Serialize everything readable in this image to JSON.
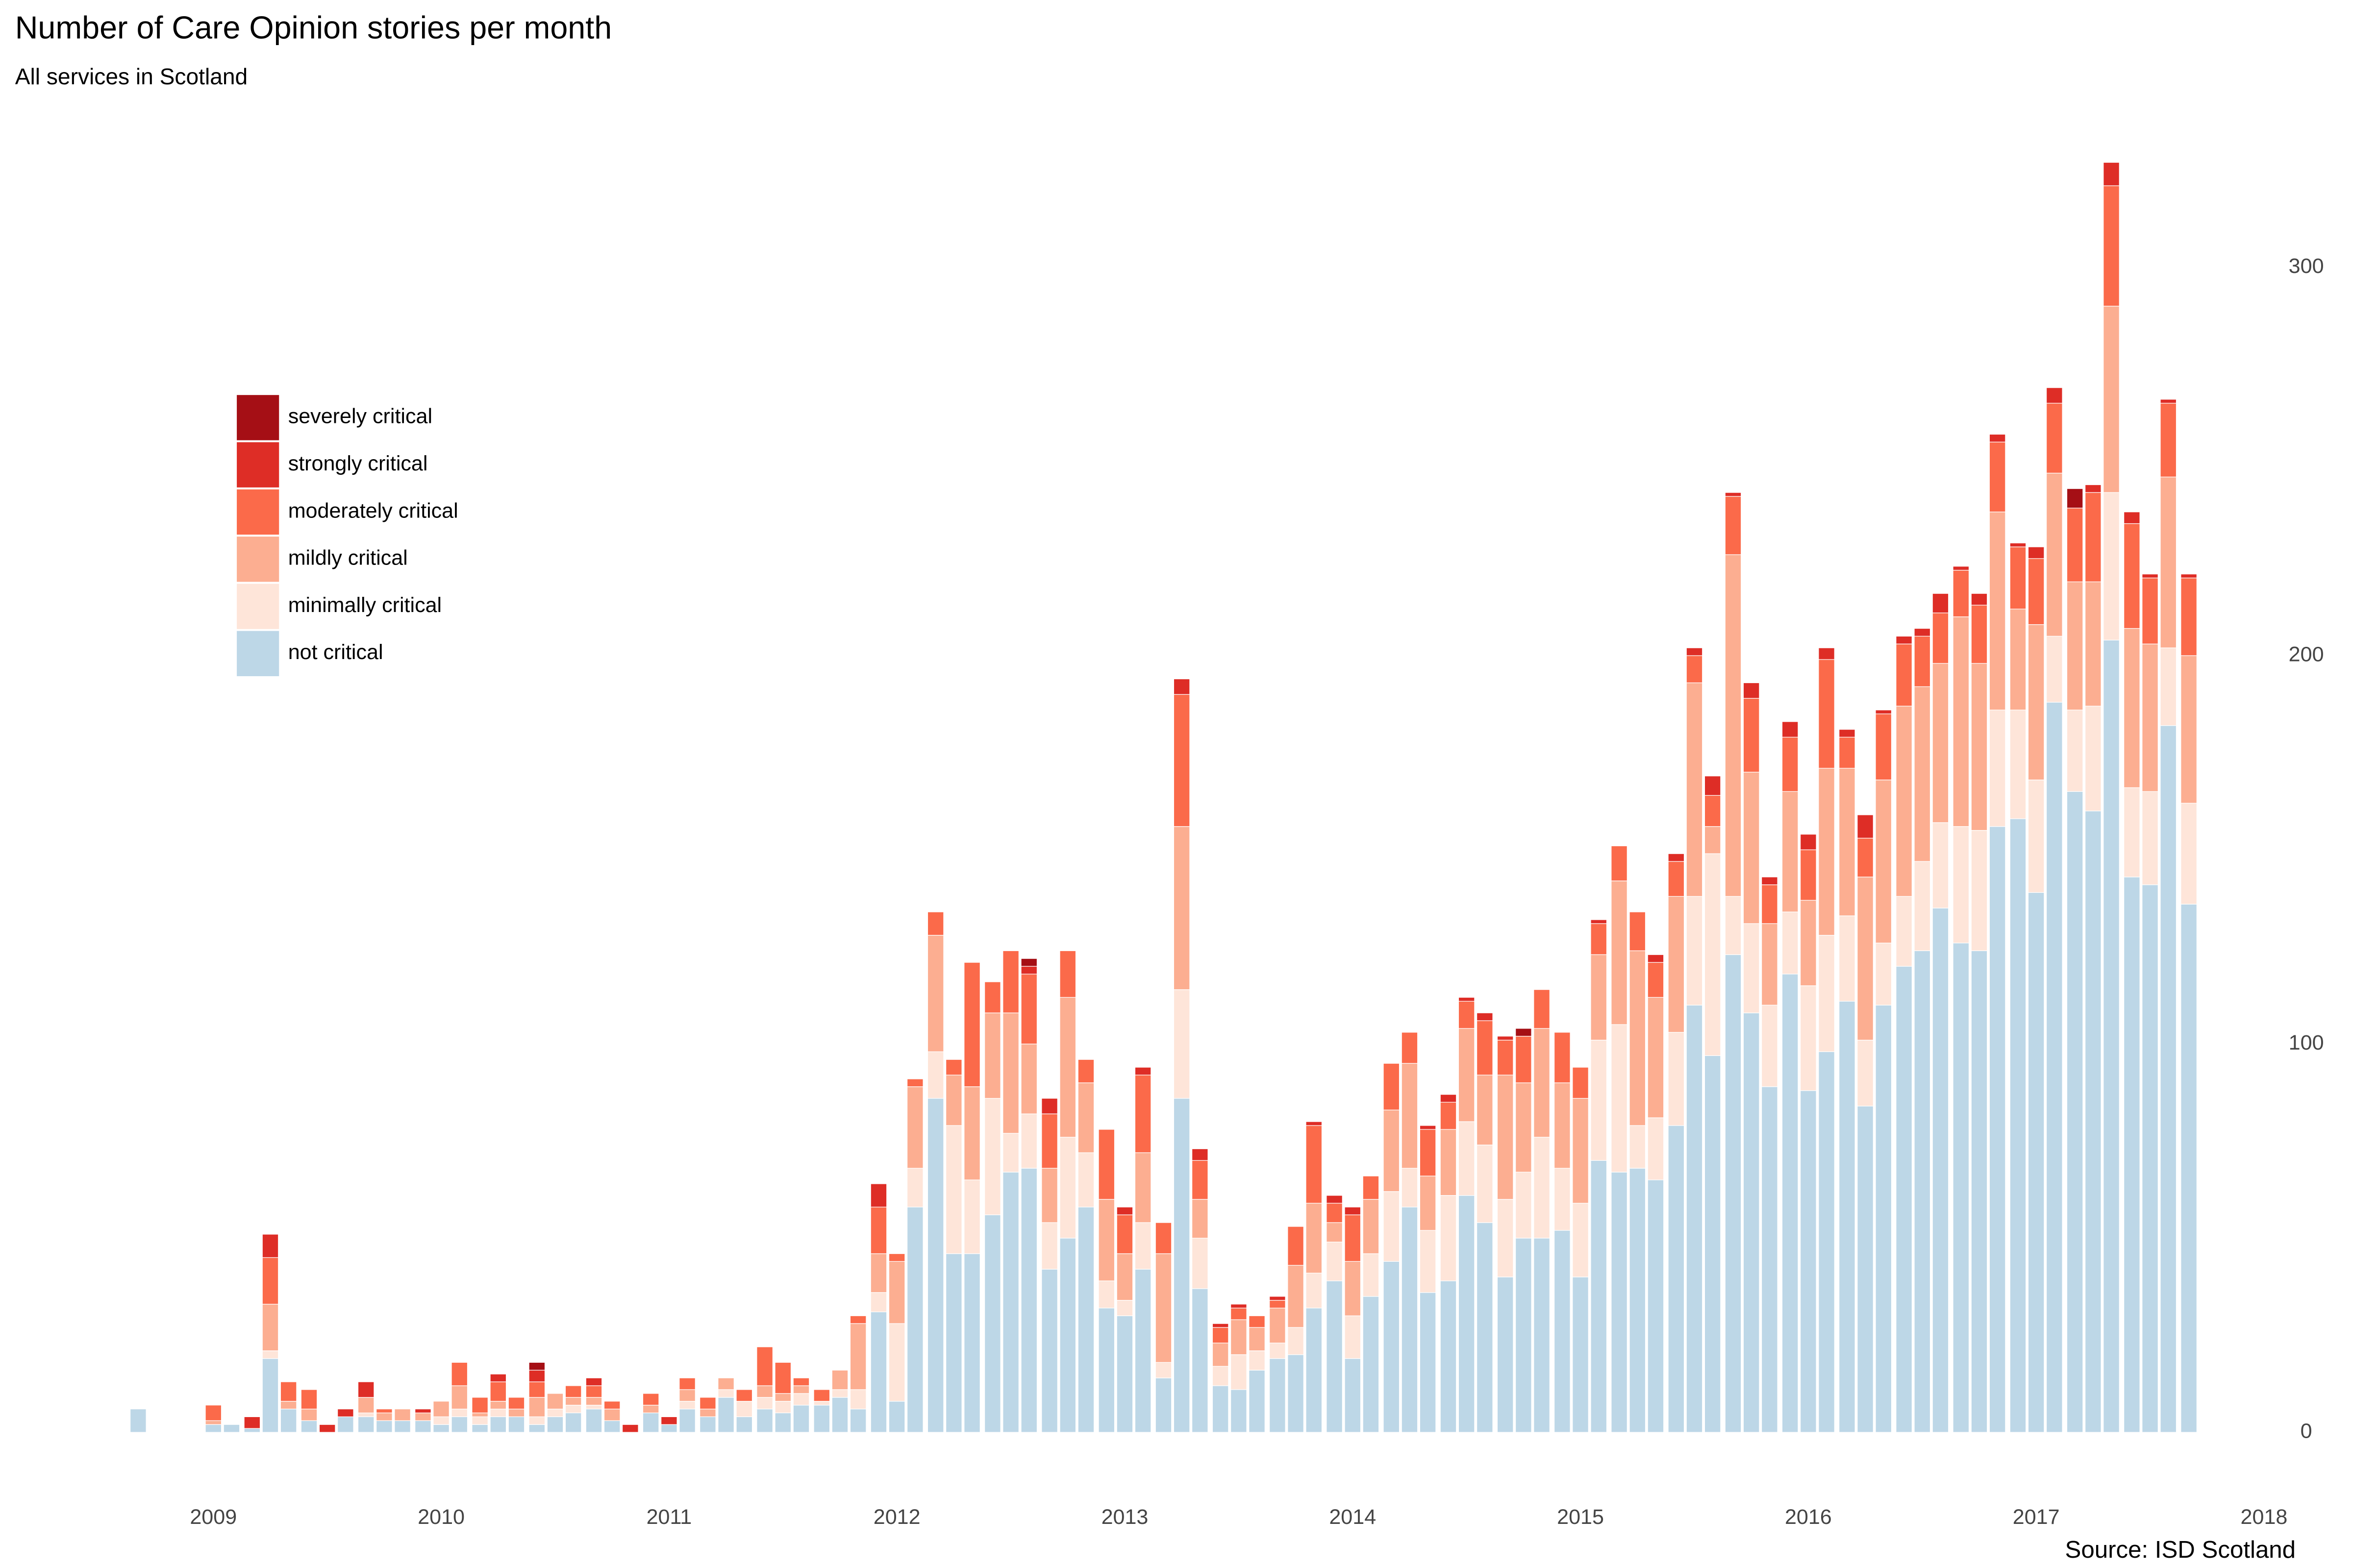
{
  "chart_data": {
    "type": "bar",
    "stacked": true,
    "title": "Number of Care Opinion stories per month",
    "subtitle": "All services in Scotland",
    "source": "Source: ISD Scotland",
    "x": [
      2008.67,
      2008.75,
      2008.83,
      2008.92,
      2009.0,
      2009.08,
      2009.17,
      2009.25,
      2009.33,
      2009.42,
      2009.5,
      2009.58,
      2009.67,
      2009.75,
      2009.83,
      2009.92,
      2010.0,
      2010.08,
      2010.17,
      2010.25,
      2010.33,
      2010.42,
      2010.5,
      2010.58,
      2010.67,
      2010.75,
      2010.83,
      2010.92,
      2011.0,
      2011.08,
      2011.17,
      2011.25,
      2011.33,
      2011.42,
      2011.5,
      2011.58,
      2011.67,
      2011.75,
      2011.83,
      2011.92,
      2012.0,
      2012.08,
      2012.17,
      2012.25,
      2012.33,
      2012.42,
      2012.5,
      2012.58,
      2012.67,
      2012.75,
      2012.83,
      2012.92,
      2013.0,
      2013.08,
      2013.17,
      2013.25,
      2013.33,
      2013.42,
      2013.5,
      2013.58,
      2013.67,
      2013.75,
      2013.83,
      2013.92,
      2014.0,
      2014.08,
      2014.17,
      2014.25,
      2014.33,
      2014.42,
      2014.5,
      2014.58,
      2014.67,
      2014.75,
      2014.83,
      2014.92,
      2015.0,
      2015.08,
      2015.17,
      2015.25,
      2015.33,
      2015.42,
      2015.5,
      2015.58,
      2015.67,
      2015.75,
      2015.83,
      2015.92,
      2016.0,
      2016.08,
      2016.17,
      2016.25,
      2016.33,
      2016.42,
      2016.5,
      2016.58,
      2016.67,
      2016.75,
      2016.83,
      2016.92,
      2017.0,
      2017.08,
      2017.17,
      2017.25,
      2017.33,
      2017.42,
      2017.5,
      2017.58,
      2017.67
    ],
    "series": [
      {
        "name": "not critical",
        "color": "#bdd7e7",
        "values": [
          6,
          0,
          0,
          0,
          2,
          2,
          1,
          19,
          6,
          3,
          0,
          4,
          4,
          3,
          3,
          3,
          2,
          4,
          2,
          4,
          4,
          2,
          4,
          5,
          6,
          3,
          0,
          5,
          2,
          6,
          4,
          9,
          4,
          6,
          5,
          7,
          7,
          9,
          6,
          31,
          8,
          58,
          86,
          46,
          46,
          56,
          67,
          68,
          42,
          50,
          58,
          32,
          30,
          42,
          14,
          86,
          37,
          12,
          11,
          16,
          19,
          20,
          32,
          39,
          19,
          35,
          44,
          58,
          36,
          39,
          61,
          54,
          40,
          50,
          50,
          52,
          40,
          70,
          67,
          68,
          65,
          79,
          110,
          97,
          123,
          108,
          89,
          118,
          88,
          98,
          111,
          84,
          110,
          120,
          124,
          135,
          126,
          124,
          156,
          158,
          139,
          188,
          165,
          160,
          204,
          143,
          141,
          182,
          136
        ]
      },
      {
        "name": "minimally critical",
        "color": "#fee5d9",
        "values": [
          0,
          0,
          0,
          0,
          0,
          0,
          0,
          2,
          0,
          0,
          0,
          0,
          1,
          0,
          0,
          0,
          2,
          2,
          2,
          2,
          0,
          2,
          2,
          2,
          1,
          0,
          0,
          0,
          0,
          2,
          0,
          2,
          4,
          3,
          3,
          3,
          1,
          2,
          5,
          5,
          20,
          10,
          12,
          33,
          19,
          30,
          10,
          14,
          12,
          26,
          14,
          7,
          4,
          12,
          4,
          28,
          13,
          5,
          9,
          5,
          4,
          7,
          9,
          10,
          11,
          11,
          18,
          10,
          16,
          22,
          19,
          20,
          20,
          17,
          26,
          16,
          19,
          31,
          38,
          11,
          16,
          24,
          28,
          52,
          15,
          23,
          21,
          16,
          27,
          30,
          22,
          17,
          16,
          18,
          23,
          22,
          30,
          31,
          30,
          28,
          29,
          17,
          21,
          27,
          38,
          23,
          24,
          20,
          26
        ]
      },
      {
        "name": "mildly critical",
        "color": "#fcae91",
        "values": [
          0,
          0,
          0,
          0,
          1,
          0,
          0,
          12,
          2,
          3,
          0,
          0,
          4,
          2,
          3,
          2,
          4,
          6,
          1,
          2,
          2,
          5,
          4,
          2,
          2,
          3,
          0,
          2,
          0,
          3,
          2,
          3,
          0,
          3,
          2,
          2,
          0,
          5,
          17,
          10,
          16,
          21,
          30,
          13,
          24,
          22,
          31,
          18,
          14,
          36,
          18,
          21,
          12,
          18,
          28,
          42,
          10,
          6,
          9,
          6,
          9,
          16,
          18,
          5,
          14,
          14,
          21,
          27,
          14,
          17,
          24,
          18,
          32,
          23,
          28,
          22,
          27,
          22,
          37,
          45,
          31,
          35,
          55,
          7,
          88,
          39,
          21,
          31,
          22,
          43,
          38,
          42,
          42,
          49,
          45,
          41,
          54,
          43,
          51,
          26,
          40,
          42,
          33,
          32,
          48,
          41,
          38,
          44,
          38
        ]
      },
      {
        "name": "moderately critical",
        "color": "#fb6a4a",
        "values": [
          0,
          0,
          0,
          0,
          4,
          0,
          0,
          12,
          5,
          5,
          0,
          0,
          0,
          1,
          0,
          0,
          0,
          6,
          4,
          5,
          3,
          4,
          0,
          3,
          3,
          2,
          0,
          3,
          0,
          3,
          3,
          0,
          3,
          10,
          8,
          2,
          3,
          0,
          2,
          12,
          2,
          2,
          6,
          4,
          32,
          8,
          16,
          18,
          14,
          12,
          6,
          18,
          10,
          20,
          8,
          34,
          10,
          4,
          3,
          3,
          2,
          10,
          20,
          5,
          12,
          6,
          12,
          8,
          12,
          7,
          7,
          14,
          9,
          12,
          10,
          13,
          8,
          8,
          9,
          10,
          9,
          9,
          7,
          8,
          15,
          19,
          10,
          14,
          13,
          28,
          8,
          10,
          17,
          16,
          13,
          13,
          12,
          15,
          18,
          16,
          17,
          18,
          19,
          23,
          31,
          27,
          17,
          19,
          20
        ]
      },
      {
        "name": "strongly critical",
        "color": "#de2d26",
        "values": [
          0,
          0,
          0,
          0,
          0,
          0,
          3,
          6,
          0,
          0,
          2,
          2,
          4,
          0,
          0,
          1,
          0,
          0,
          0,
          2,
          0,
          3,
          0,
          0,
          2,
          0,
          2,
          0,
          2,
          0,
          0,
          0,
          0,
          0,
          0,
          0,
          0,
          0,
          0,
          6,
          0,
          0,
          0,
          0,
          0,
          0,
          0,
          2,
          4,
          0,
          0,
          0,
          2,
          2,
          0,
          4,
          3,
          1,
          1,
          0,
          1,
          0,
          1,
          2,
          2,
          0,
          0,
          0,
          1,
          2,
          1,
          2,
          1,
          0,
          0,
          0,
          0,
          1,
          0,
          0,
          2,
          2,
          2,
          5,
          1,
          4,
          2,
          4,
          4,
          3,
          2,
          6,
          1,
          2,
          2,
          5,
          1,
          3,
          2,
          1,
          3,
          4,
          0,
          2,
          6,
          3,
          1,
          1,
          1
        ]
      },
      {
        "name": "severely critical",
        "color": "#a50f15",
        "values": [
          0,
          0,
          0,
          0,
          0,
          0,
          0,
          0,
          0,
          0,
          0,
          0,
          0,
          0,
          0,
          0,
          0,
          0,
          0,
          0,
          0,
          2,
          0,
          0,
          0,
          0,
          0,
          0,
          0,
          0,
          0,
          0,
          0,
          0,
          0,
          0,
          0,
          0,
          0,
          0,
          0,
          0,
          0,
          0,
          0,
          0,
          0,
          2,
          0,
          0,
          0,
          0,
          0,
          0,
          0,
          0,
          0,
          0,
          0,
          0,
          0,
          0,
          0,
          0,
          0,
          0,
          0,
          0,
          0,
          0,
          0,
          0,
          0,
          2,
          0,
          0,
          0,
          0,
          0,
          0,
          0,
          0,
          0,
          0,
          0,
          0,
          0,
          0,
          0,
          0,
          0,
          0,
          0,
          0,
          0,
          0,
          0,
          0,
          0,
          0,
          0,
          0,
          5,
          0,
          0,
          0,
          0,
          0,
          0
        ]
      }
    ],
    "xlim": [
      2008.56,
      2018
    ],
    "xticks": [
      2009,
      2010,
      2011,
      2012,
      2013,
      2014,
      2015,
      2016,
      2017,
      2018
    ],
    "ylim": [
      0,
      330
    ],
    "yticks": [
      0,
      100,
      200,
      300
    ],
    "y_axis_side": "right",
    "grid": false,
    "legend": "top-left"
  }
}
